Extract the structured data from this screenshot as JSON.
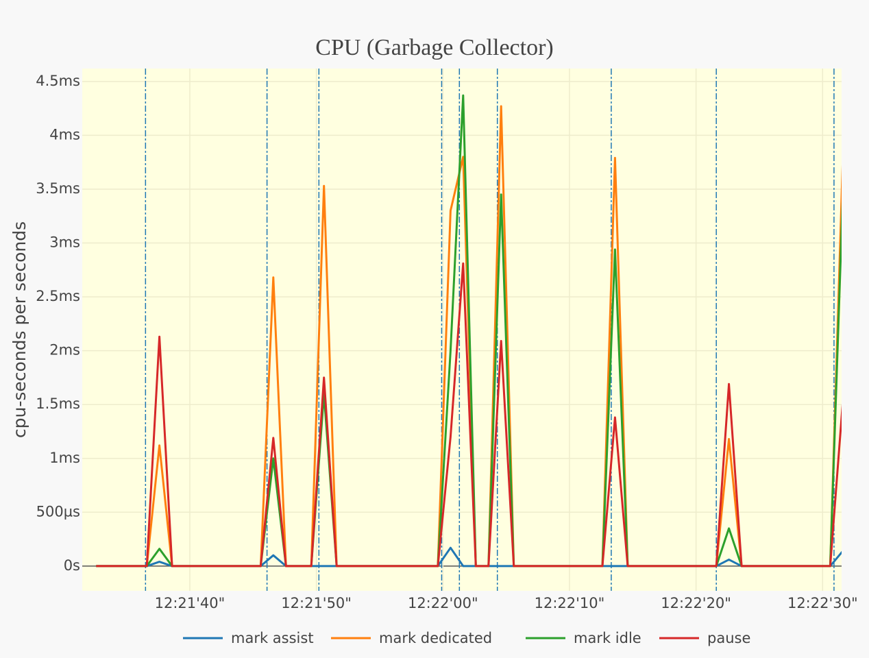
{
  "chart_data": {
    "type": "line",
    "title": "CPU (Garbage Collector)",
    "y_label": "cpu-seconds per seconds",
    "x": [
      "12:21:32.6",
      "12:21:33.6",
      "12:21:34.6",
      "12:21:35.6",
      "12:21:36.6",
      "12:21:37.6",
      "12:21:38.6",
      "12:21:39.6",
      "12:21:40.6",
      "12:21:41.6",
      "12:21:42.6",
      "12:21:43.6",
      "12:21:44.6",
      "12:21:45.6",
      "12:21:46.6",
      "12:21:47.6",
      "12:21:48.6",
      "12:21:49.6",
      "12:21:50.6",
      "12:21:51.6",
      "12:21:52.6",
      "12:21:53.6",
      "12:21:54.6",
      "12:21:55.6",
      "12:21:56.6",
      "12:21:57.6",
      "12:21:58.6",
      "12:21:59.6",
      "12:22:00.6",
      "12:22:01.6",
      "12:22:02.6",
      "12:22:03.6",
      "12:22:04.6",
      "12:22:05.6",
      "12:22:06.6",
      "12:22:07.6",
      "12:22:08.6",
      "12:22:09.6",
      "12:22:10.6",
      "12:22:11.6",
      "12:22:12.6",
      "12:22:13.6",
      "12:22:14.6",
      "12:22:15.6",
      "12:22:16.6",
      "12:22:17.6",
      "12:22:18.6",
      "12:22:19.6",
      "12:22:20.6",
      "12:22:21.6",
      "12:22:22.6",
      "12:22:23.6",
      "12:22:24.6",
      "12:22:25.6",
      "12:22:26.6",
      "12:22:27.6",
      "12:22:28.6",
      "12:22:29.6",
      "12:22:30.6",
      "12:22:31.6"
    ],
    "series": [
      {
        "name": "mark assist",
        "color": "#1f77b4",
        "values": [
          0,
          0,
          0,
          0,
          0,
          0.04,
          0,
          0,
          0,
          0,
          0,
          0,
          0,
          0,
          0.1,
          0,
          0,
          0,
          0,
          0,
          0,
          0,
          0,
          0,
          0,
          0,
          0,
          0,
          0.17,
          0,
          0,
          0,
          0,
          0,
          0,
          0,
          0,
          0,
          0,
          0,
          0,
          0,
          0,
          0,
          0,
          0,
          0,
          0,
          0,
          0,
          0.06,
          0,
          0,
          0,
          0,
          0,
          0,
          0,
          0,
          0.14
        ]
      },
      {
        "name": "mark dedicated",
        "color": "#ff7f0e",
        "values": [
          0,
          0,
          0,
          0,
          0,
          1.12,
          0,
          0,
          0,
          0,
          0,
          0,
          0,
          0,
          2.68,
          0,
          0,
          0,
          3.53,
          0,
          0,
          0,
          0,
          0,
          0,
          0,
          0,
          0,
          3.3,
          3.8,
          0,
          0,
          4.27,
          0,
          0,
          0,
          0,
          0,
          0,
          0,
          0,
          3.79,
          0,
          0,
          0,
          0,
          0,
          0,
          0,
          0,
          1.18,
          0,
          0,
          0,
          0,
          0,
          0,
          0,
          0,
          3.79
        ]
      },
      {
        "name": "mark idle",
        "color": "#2ca02c",
        "values": [
          0,
          0,
          0,
          0,
          0,
          0.16,
          0,
          0,
          0,
          0,
          0,
          0,
          0,
          0,
          1.0,
          0,
          0,
          0,
          1.6,
          0,
          0,
          0,
          0,
          0,
          0,
          0,
          0,
          0,
          2.0,
          4.37,
          0,
          0,
          3.45,
          0,
          0,
          0,
          0,
          0,
          0,
          0,
          0,
          2.94,
          0,
          0,
          0,
          0,
          0,
          0,
          0,
          0,
          0.35,
          0,
          0,
          0,
          0,
          0,
          0,
          0,
          0,
          3.45
        ]
      },
      {
        "name": "pause",
        "color": "#d62728",
        "values": [
          0,
          0,
          0,
          0,
          0,
          2.13,
          0,
          0,
          0,
          0,
          0,
          0,
          0,
          0,
          1.19,
          0,
          0,
          0,
          1.75,
          0,
          0,
          0,
          0,
          0,
          0,
          0,
          0,
          0,
          1.2,
          2.81,
          0,
          0,
          2.09,
          0,
          0,
          0,
          0,
          0,
          0,
          0,
          0,
          1.38,
          0,
          0,
          0,
          0,
          0,
          0,
          0,
          0,
          1.69,
          0,
          0,
          0,
          0,
          0,
          0,
          0,
          0,
          1.53
        ]
      }
    ],
    "vlines": {
      "color": "#1f77b4",
      "x": [
        "12:21:36.5",
        "12:21:46.1",
        "12:21:50.2",
        "12:21:59.9",
        "12:22:01.3",
        "12:22:04.3",
        "12:22:13.3",
        "12:22:21.6",
        "12:22:30.9"
      ]
    },
    "xlim": [
      "12:21:31.5",
      "12:22:31.5"
    ],
    "xticks": [
      {
        "value": "12:21:40",
        "label": "12:21'40\""
      },
      {
        "value": "12:21:50",
        "label": "12:21'50\""
      },
      {
        "value": "12:22:00",
        "label": "12:22'00\""
      },
      {
        "value": "12:22:10",
        "label": "12:22'10\""
      },
      {
        "value": "12:22:20",
        "label": "12:22'20\""
      },
      {
        "value": "12:22:30",
        "label": "12:22'30\""
      }
    ],
    "ylim": [
      -0.23,
      4.62
    ],
    "yticks": [
      {
        "value": 0,
        "label": "0s"
      },
      {
        "value": 0.5,
        "label": "500µs"
      },
      {
        "value": 1,
        "label": "1ms"
      },
      {
        "value": 1.5,
        "label": "1.5ms"
      },
      {
        "value": 2,
        "label": "2ms"
      },
      {
        "value": 2.5,
        "label": "2.5ms"
      },
      {
        "value": 3,
        "label": "3ms"
      },
      {
        "value": 3.5,
        "label": "3.5ms"
      },
      {
        "value": 4,
        "label": "4ms"
      },
      {
        "value": 4.5,
        "label": "4.5ms"
      }
    ],
    "grid": true,
    "legend": "bottom"
  }
}
